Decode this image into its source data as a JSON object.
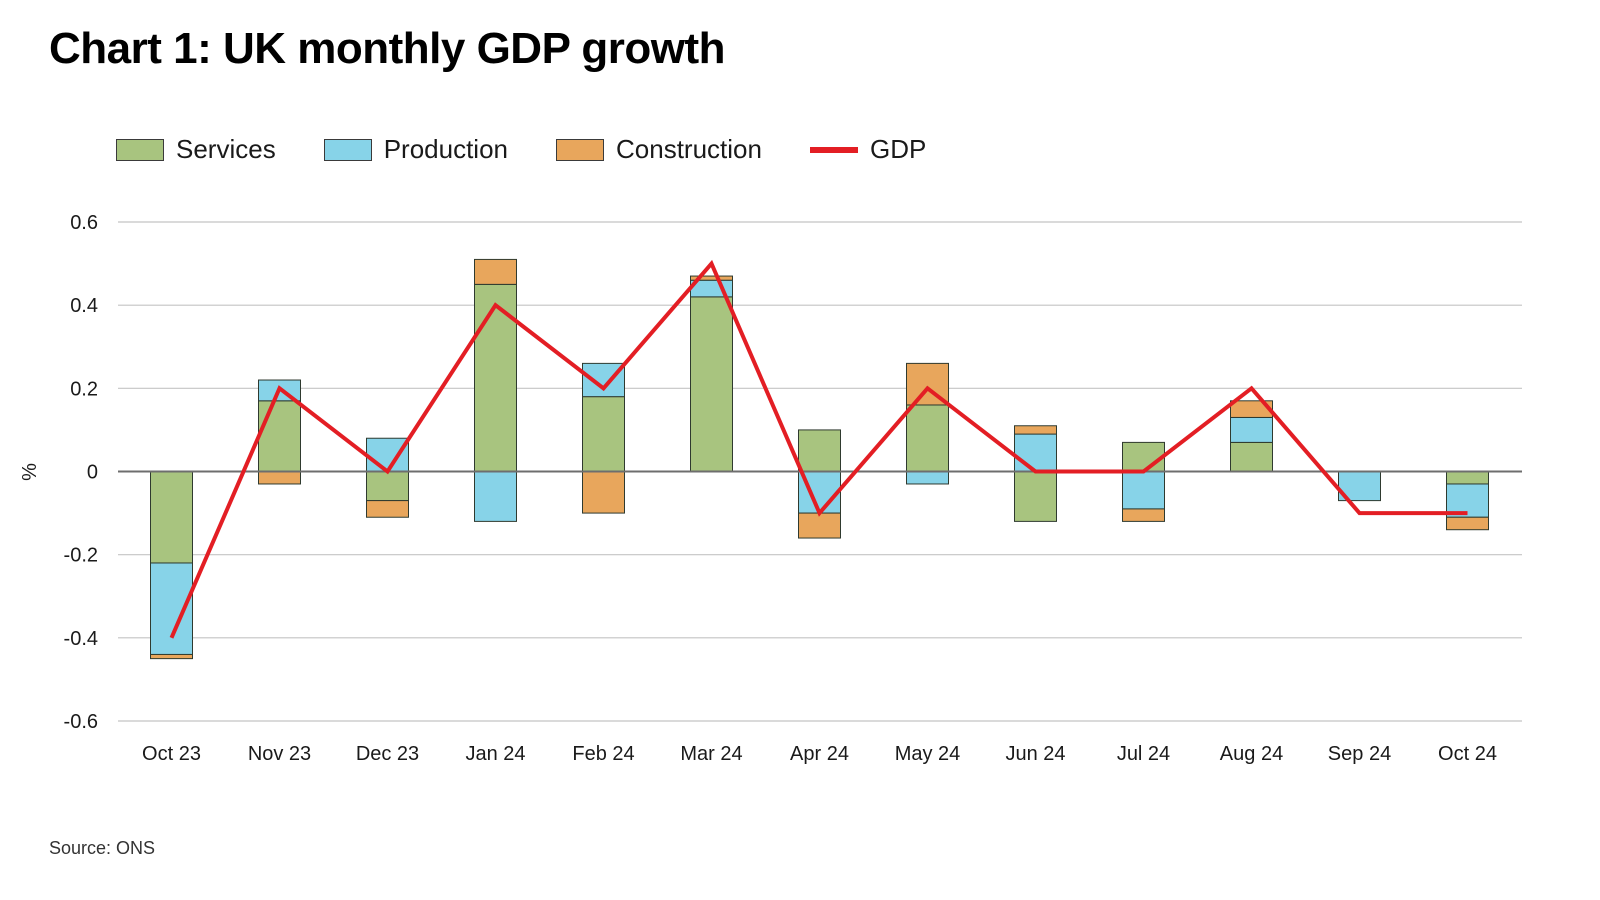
{
  "chart_data": {
    "type": "bar",
    "subtype": "stacked-bar-with-line",
    "title": "Chart 1: UK monthly GDP growth",
    "xlabel": "",
    "ylabel": "%",
    "ylim": [
      -0.6,
      0.6
    ],
    "yticks": [
      0.6,
      0.4,
      0.2,
      0,
      -0.2,
      -0.4,
      -0.6
    ],
    "ytick_labels": [
      "0.6",
      "0.4",
      "0.2",
      "0",
      "-0.2",
      "-0.4",
      "-0.6"
    ],
    "grid": true,
    "legend_position": "top-left",
    "categories": [
      "Oct 23",
      "Nov 23",
      "Dec 23",
      "Jan 24",
      "Feb 24",
      "Mar 24",
      "Apr 24",
      "May 24",
      "Jun 24",
      "Jul 24",
      "Aug 24",
      "Sep 24",
      "Oct 24"
    ],
    "series": [
      {
        "name": "Services",
        "kind": "bar",
        "color": "#a8c47f",
        "values": [
          -0.22,
          0.17,
          -0.07,
          0.45,
          0.18,
          0.42,
          0.1,
          0.16,
          -0.12,
          0.07,
          0.07,
          0.0,
          -0.03
        ]
      },
      {
        "name": "Production",
        "kind": "bar",
        "color": "#87d3e8",
        "values": [
          -0.22,
          0.05,
          0.08,
          -0.12,
          0.08,
          0.04,
          -0.1,
          -0.03,
          0.09,
          -0.09,
          0.06,
          -0.07,
          -0.08
        ]
      },
      {
        "name": "Construction",
        "kind": "bar",
        "color": "#e8a65c",
        "values": [
          -0.01,
          -0.03,
          -0.04,
          0.06,
          -0.1,
          0.01,
          -0.06,
          0.1,
          0.02,
          -0.03,
          0.04,
          0.0,
          -0.03
        ]
      },
      {
        "name": "GDP",
        "kind": "line",
        "color": "#e31e24",
        "values": [
          -0.4,
          0.2,
          0.0,
          0.4,
          0.2,
          0.5,
          -0.1,
          0.2,
          0.0,
          0.0,
          0.2,
          -0.1,
          -0.1
        ]
      }
    ],
    "source": "Source: ONS"
  }
}
